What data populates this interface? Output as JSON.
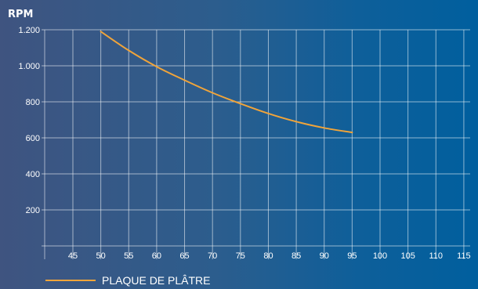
{
  "chart_data": {
    "type": "line",
    "title": "",
    "ylabel": "RPM",
    "xlabel": "",
    "xlim": [
      40,
      115
    ],
    "ylim": [
      0,
      1200
    ],
    "x_ticks": [
      45,
      50,
      55,
      60,
      65,
      70,
      75,
      80,
      85,
      90,
      95,
      100,
      105,
      110,
      115
    ],
    "y_ticks": [
      200,
      400,
      600,
      800,
      1000,
      1200
    ],
    "y_tick_labels": [
      "200",
      "400",
      "600",
      "800",
      "1.000",
      "1.200"
    ],
    "grid": true,
    "legend_position": "bottom-left",
    "series": [
      {
        "name": "PLAQUE DE PLÂTRE",
        "color": "#f0a43a",
        "x": [
          50,
          55,
          60,
          65,
          70,
          75,
          80,
          85,
          90,
          95
        ],
        "y": [
          1190,
          1085,
          995,
          920,
          850,
          790,
          735,
          690,
          655,
          630
        ]
      }
    ]
  }
}
